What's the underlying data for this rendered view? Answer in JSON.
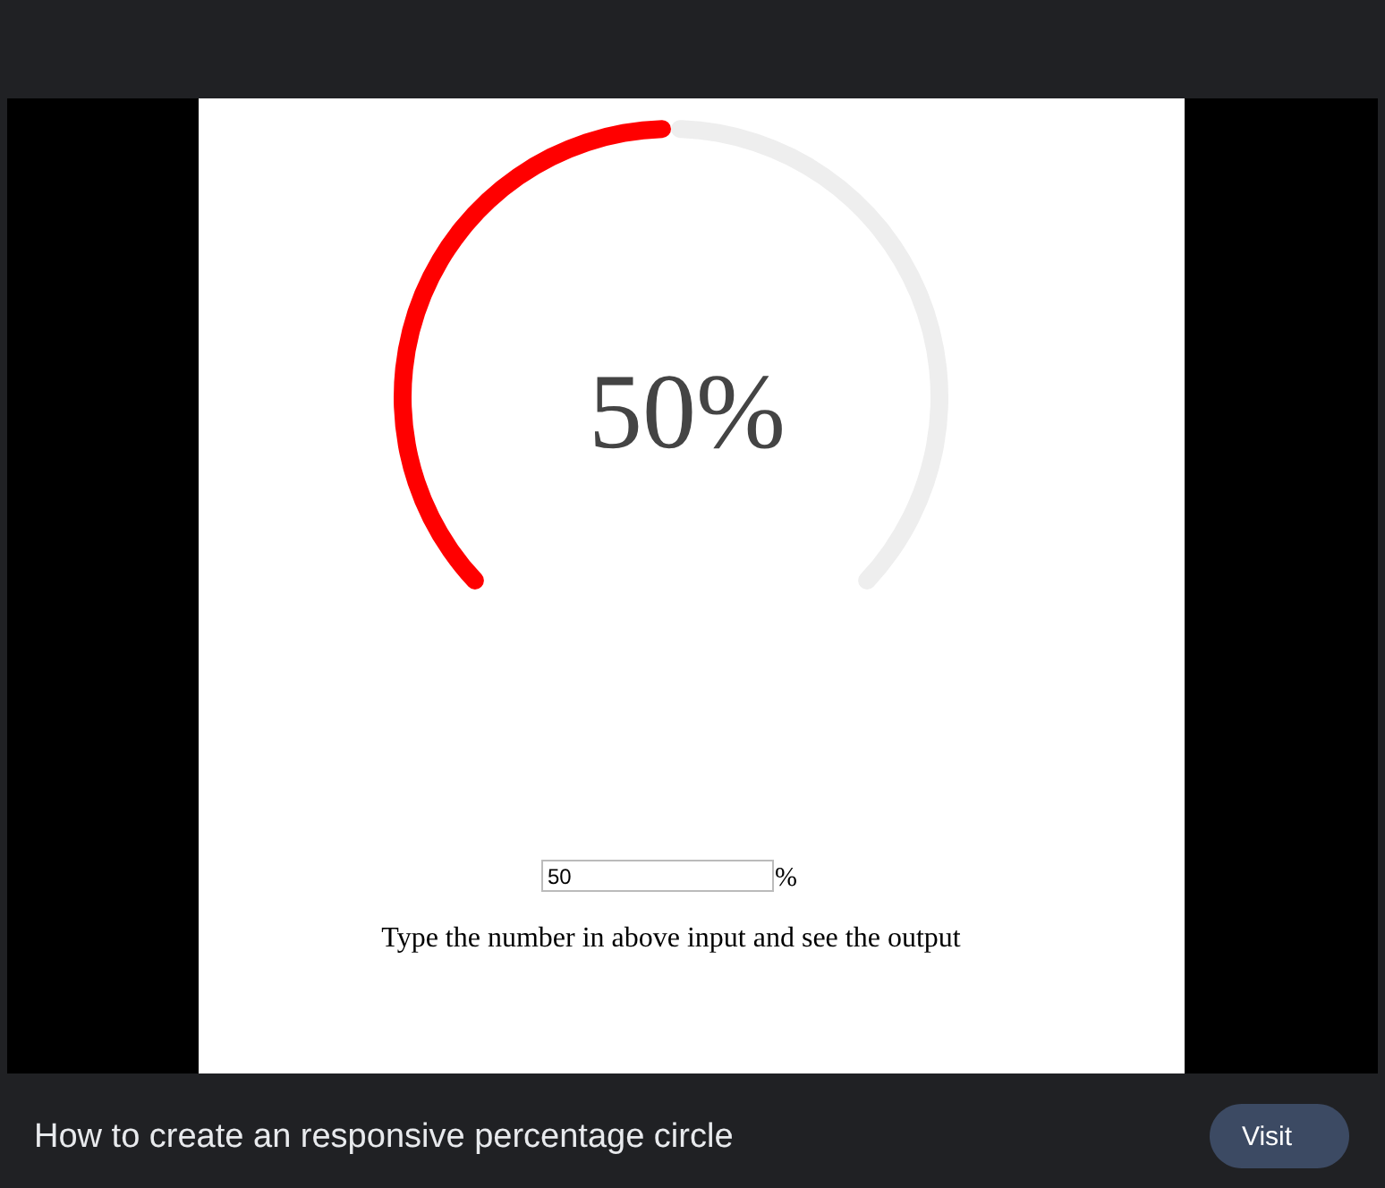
{
  "chart_data": {
    "type": "donut",
    "title": "How to create an responsive percentage circle",
    "categories": [
      null,
      null
    ],
    "values": [
      50,
      50
    ],
    "colors": [
      "#ff0000",
      "#eeeeee"
    ],
    "annotations": [
      "50%",
      "50",
      "%",
      "Type the number in above input and see the output",
      "Visit"
    ]
  }
}
